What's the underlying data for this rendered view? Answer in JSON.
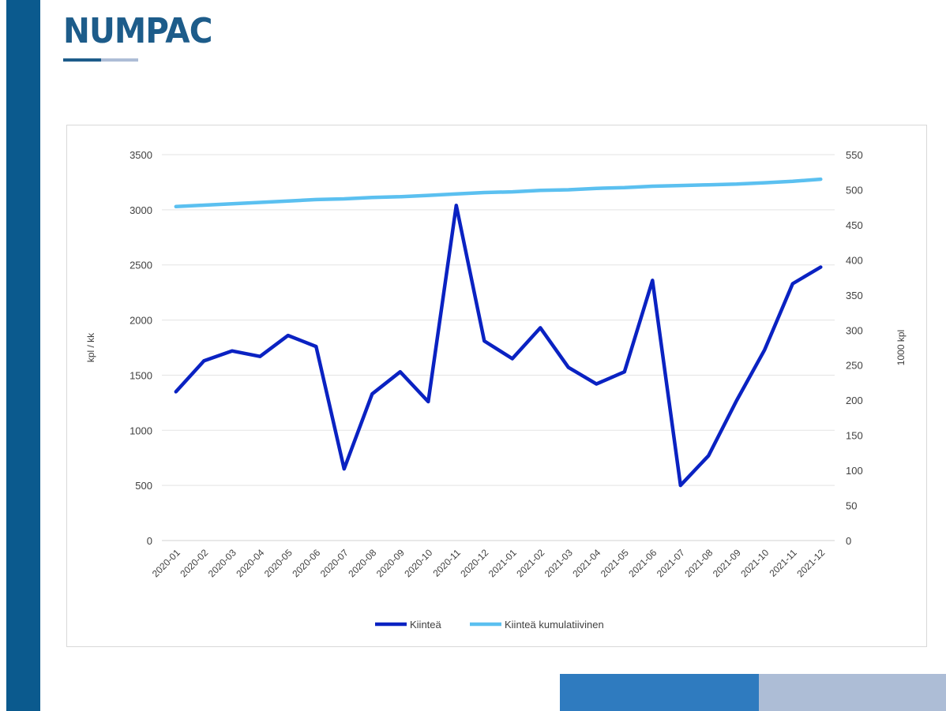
{
  "brand": {
    "name": "NUMPAC",
    "colors": {
      "bar": "#0b5a8e",
      "logo": "#1d5c8a",
      "accent_mid": "#2f7bbf",
      "accent_light": "#adbdd6"
    }
  },
  "chart_data": {
    "type": "line",
    "categories": [
      "2020-01",
      "2020-02",
      "2020-03",
      "2020-04",
      "2020-05",
      "2020-06",
      "2020-07",
      "2020-08",
      "2020-09",
      "2020-10",
      "2020-11",
      "2020-12",
      "2021-01",
      "2021-02",
      "2021-03",
      "2021-04",
      "2021-05",
      "2021-06",
      "2021-07",
      "2021-08",
      "2021-09",
      "2021-10",
      "2021-11",
      "2021-12"
    ],
    "series": [
      {
        "name": "Kiinteä",
        "axis": "left",
        "color": "#0a22c2",
        "values": [
          1350,
          1630,
          1720,
          1670,
          1860,
          1760,
          650,
          1330,
          1530,
          1260,
          3040,
          1810,
          1650,
          1930,
          1570,
          1420,
          1530,
          2360,
          500,
          770,
          1270,
          1730,
          2330,
          2480
        ]
      },
      {
        "name": "Kiinteä kumulatiivinen",
        "axis": "right",
        "color": "#5bc0f0",
        "values": [
          476,
          478,
          480,
          482,
          484,
          486,
          487,
          489,
          490,
          492,
          494,
          496,
          497,
          499,
          500,
          502,
          503,
          505,
          506,
          507,
          508,
          510,
          512,
          515
        ]
      }
    ],
    "ylabel_left": "kpl / kk",
    "ylabel_right": "1000 kpl",
    "ylim_left": [
      0,
      3500
    ],
    "ylim_right": [
      0,
      550
    ],
    "yticks_left": [
      "0",
      "500",
      "1000",
      "1500",
      "2000",
      "2500",
      "3000",
      "3500"
    ],
    "yticks_right": [
      "0",
      "50",
      "100",
      "150",
      "200",
      "250",
      "300",
      "350",
      "400",
      "450",
      "500",
      "550"
    ],
    "grid": true,
    "legend_position": "bottom"
  }
}
